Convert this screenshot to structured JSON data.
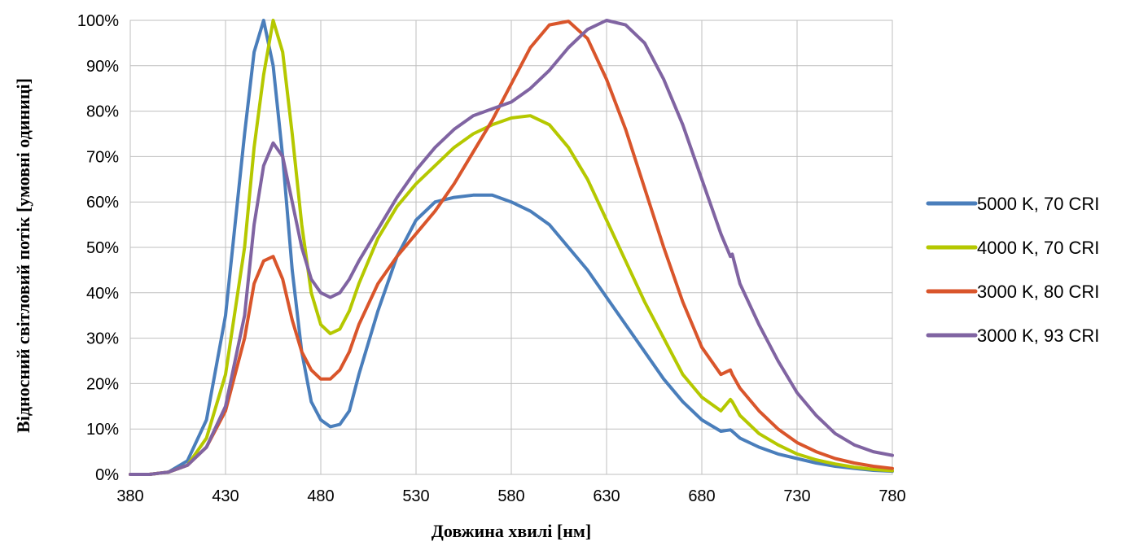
{
  "chart_data": {
    "type": "line",
    "title": "",
    "xlabel": "Довжина хвилі [нм]",
    "ylabel": "Відносний світловий потік [умовні одиниці]",
    "xlim": [
      380,
      780
    ],
    "ylim": [
      0,
      100
    ],
    "x_ticks": [
      380,
      430,
      480,
      530,
      580,
      630,
      680,
      730,
      780
    ],
    "x_tick_labels": [
      "380",
      "430",
      "480",
      "530",
      "580",
      "630",
      "680",
      "730",
      "780"
    ],
    "y_ticks": [
      0,
      10,
      20,
      30,
      40,
      50,
      60,
      70,
      80,
      90,
      100
    ],
    "y_tick_labels": [
      "0%",
      "10%",
      "20%",
      "30%",
      "40%",
      "50%",
      "60%",
      "70%",
      "80%",
      "90%",
      "100%"
    ],
    "grid": "vertical-and-horizontal",
    "legend_position": "right",
    "x": [
      380,
      390,
      400,
      410,
      420,
      430,
      440,
      445,
      450,
      455,
      460,
      465,
      470,
      475,
      480,
      485,
      490,
      495,
      500,
      510,
      520,
      530,
      540,
      550,
      560,
      570,
      580,
      590,
      600,
      610,
      620,
      630,
      640,
      650,
      660,
      670,
      680,
      690,
      695,
      696,
      700,
      710,
      720,
      730,
      740,
      750,
      760,
      770,
      780
    ],
    "series": [
      {
        "name": "5000 K, 70 CRI",
        "color": "#4a7ebb",
        "values": [
          0,
          0,
          0.5,
          3,
          12,
          35,
          75,
          93,
          100,
          90,
          70,
          45,
          27,
          16,
          12,
          10.5,
          11,
          14,
          22,
          36,
          48,
          56,
          60,
          61,
          61.5,
          61.5,
          60,
          58,
          55,
          50,
          45,
          39,
          33,
          27,
          21,
          16,
          12,
          9.5,
          9.8,
          9.5,
          8,
          6,
          4.5,
          3.5,
          2.5,
          1.8,
          1.3,
          0.9,
          0.7
        ]
      },
      {
        "name": "4000 K, 70 CRI",
        "color": "#b5c800",
        "values": [
          0,
          0,
          0.5,
          2,
          8,
          22,
          50,
          72,
          88,
          100,
          93,
          75,
          55,
          40,
          33,
          31,
          32,
          36,
          42,
          52,
          59,
          64,
          68,
          72,
          75,
          77,
          78.5,
          79,
          77,
          72,
          65,
          56,
          47,
          38,
          30,
          22,
          17,
          14,
          16.5,
          16,
          13,
          9,
          6.5,
          4.5,
          3.2,
          2.3,
          1.6,
          1.1,
          0.8
        ]
      },
      {
        "name": "3000 K, 80 CRI",
        "color": "#d9552b",
        "values": [
          0,
          0,
          0.5,
          2,
          6,
          14,
          30,
          42,
          47,
          48,
          43,
          34,
          27,
          23,
          21,
          21,
          23,
          27,
          33,
          42,
          48,
          53,
          58,
          64,
          71,
          78,
          86,
          94,
          99,
          99.8,
          96,
          87,
          76,
          63,
          50,
          38,
          28,
          22,
          23,
          22,
          19,
          14,
          10,
          7,
          5,
          3.5,
          2.5,
          1.8,
          1.3
        ]
      },
      {
        "name": "3000 K, 93 CRI",
        "color": "#8064a2",
        "values": [
          0,
          0,
          0.5,
          2,
          6,
          15,
          35,
          55,
          68,
          73,
          70,
          60,
          50,
          43,
          40,
          39,
          40,
          43,
          47,
          54,
          61,
          67,
          72,
          76,
          79,
          80.5,
          82,
          85,
          89,
          94,
          98,
          100,
          99,
          95,
          87,
          77,
          65,
          53,
          48,
          48.5,
          42,
          33,
          25,
          18,
          13,
          9,
          6.5,
          5,
          4.2
        ]
      }
    ]
  }
}
